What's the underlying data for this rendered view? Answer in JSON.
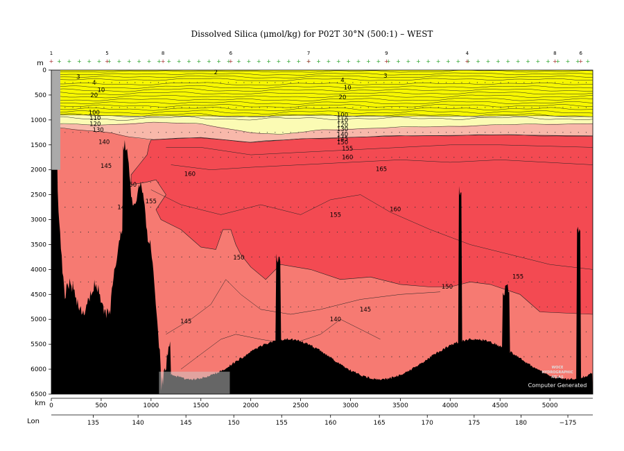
{
  "chart_data": {
    "type": "heatmap",
    "title": "Dissolved Silica (μmol/kg) for P02T 30°N (500:1) – WEST",
    "y_axis": {
      "label": "m",
      "ylim": [
        6500,
        0
      ],
      "ticks": [
        0,
        500,
        1000,
        1500,
        2000,
        2500,
        3000,
        3500,
        4000,
        4500,
        5000,
        5500,
        6000,
        6500
      ]
    },
    "x_axis": {
      "label": "km",
      "xlim": [
        0,
        5430
      ],
      "ticks": [
        0,
        500,
        1000,
        1500,
        2000,
        2500,
        3000,
        3500,
        4000,
        4500,
        5000
      ]
    },
    "lon_axis": {
      "label": "Lon",
      "ticks": [
        {
          "km": 420,
          "label": "135"
        },
        {
          "km": 870,
          "label": "140"
        },
        {
          "km": 1350,
          "label": "145"
        },
        {
          "km": 1830,
          "label": "150"
        },
        {
          "km": 2310,
          "label": "155"
        },
        {
          "km": 2800,
          "label": "160"
        },
        {
          "km": 3290,
          "label": "165"
        },
        {
          "km": 3770,
          "label": "170"
        },
        {
          "km": 4240,
          "label": "175"
        },
        {
          "km": 4710,
          "label": "180"
        },
        {
          "km": 5180,
          "label": "−175"
        }
      ]
    },
    "station_markers": [
      {
        "km": 0,
        "label": "1"
      },
      {
        "km": 560,
        "label": "5"
      },
      {
        "km": 1120,
        "label": "8"
      },
      {
        "km": 1800,
        "label": "6"
      },
      {
        "km": 2580,
        "label": "7"
      },
      {
        "km": 3360,
        "label": "9"
      },
      {
        "km": 4170,
        "label": "4"
      },
      {
        "km": 5050,
        "label": "8"
      },
      {
        "km": 5310,
        "label": "6"
      }
    ],
    "color_bands": [
      {
        "from": 0,
        "to": 100,
        "color": "#f7f700"
      },
      {
        "from": 100,
        "to": 130,
        "color": "#fbfbb4"
      },
      {
        "from": 130,
        "to": 140,
        "color": "#f8b8aa"
      },
      {
        "from": 140,
        "to": 150,
        "color": "#f67a72"
      },
      {
        "from": 150,
        "to": 160,
        "color": "#f34a52"
      }
    ],
    "contour_levels": [
      2,
      3,
      4,
      5,
      10,
      20,
      30,
      40,
      50,
      60,
      70,
      80,
      90,
      100,
      110,
      120,
      130,
      140,
      145,
      150,
      155,
      160,
      165
    ],
    "contour_labels": [
      {
        "text": "2",
        "km": 1650,
        "depth": 40
      },
      {
        "text": "3",
        "km": 270,
        "depth": 130
      },
      {
        "text": "3",
        "km": 3350,
        "depth": 110
      },
      {
        "text": "4",
        "km": 430,
        "depth": 250
      },
      {
        "text": "4",
        "km": 2920,
        "depth": 200
      },
      {
        "text": "10",
        "km": 500,
        "depth": 400
      },
      {
        "text": "10",
        "km": 2970,
        "depth": 350
      },
      {
        "text": "20",
        "km": 430,
        "depth": 500
      },
      {
        "text": "20",
        "km": 2920,
        "depth": 540
      },
      {
        "text": "100",
        "km": 430,
        "depth": 850
      },
      {
        "text": "100",
        "km": 2920,
        "depth": 900
      },
      {
        "text": "110",
        "km": 440,
        "depth": 960
      },
      {
        "text": "110",
        "km": 2920,
        "depth": 1000
      },
      {
        "text": "120",
        "km": 440,
        "depth": 1080
      },
      {
        "text": "120",
        "km": 2920,
        "depth": 1100
      },
      {
        "text": "130",
        "km": 470,
        "depth": 1200
      },
      {
        "text": "130",
        "km": 2920,
        "depth": 1180
      },
      {
        "text": "140",
        "km": 530,
        "depth": 1440
      },
      {
        "text": "140",
        "km": 2920,
        "depth": 1290
      },
      {
        "text": "145",
        "km": 2920,
        "depth": 1380
      },
      {
        "text": "150",
        "km": 2920,
        "depth": 1450
      },
      {
        "text": "155",
        "km": 2970,
        "depth": 1570
      },
      {
        "text": "160",
        "km": 2970,
        "depth": 1750
      },
      {
        "text": "145",
        "km": 550,
        "depth": 1920
      },
      {
        "text": "160",
        "km": 1390,
        "depth": 2080
      },
      {
        "text": "165",
        "km": 3310,
        "depth": 1980
      },
      {
        "text": "150",
        "km": 800,
        "depth": 2300
      },
      {
        "text": "155",
        "km": 1000,
        "depth": 2630
      },
      {
        "text": "14",
        "km": 700,
        "depth": 2750
      },
      {
        "text": "155",
        "km": 2850,
        "depth": 2900
      },
      {
        "text": "160",
        "km": 3450,
        "depth": 2790
      },
      {
        "text": "150",
        "km": 1880,
        "depth": 3760
      },
      {
        "text": "150",
        "km": 3970,
        "depth": 4340
      },
      {
        "text": "155",
        "km": 4680,
        "depth": 4140
      },
      {
        "text": "145",
        "km": 3150,
        "depth": 4800
      },
      {
        "text": "140",
        "km": 2850,
        "depth": 5000
      },
      {
        "text": "145",
        "km": 1350,
        "depth": 5040
      }
    ]
  },
  "watermark": {
    "line1": "WOCE",
    "line2": "HYDROGRAPHIC",
    "line3": "ATLAS",
    "line4": "Computer Generated"
  }
}
